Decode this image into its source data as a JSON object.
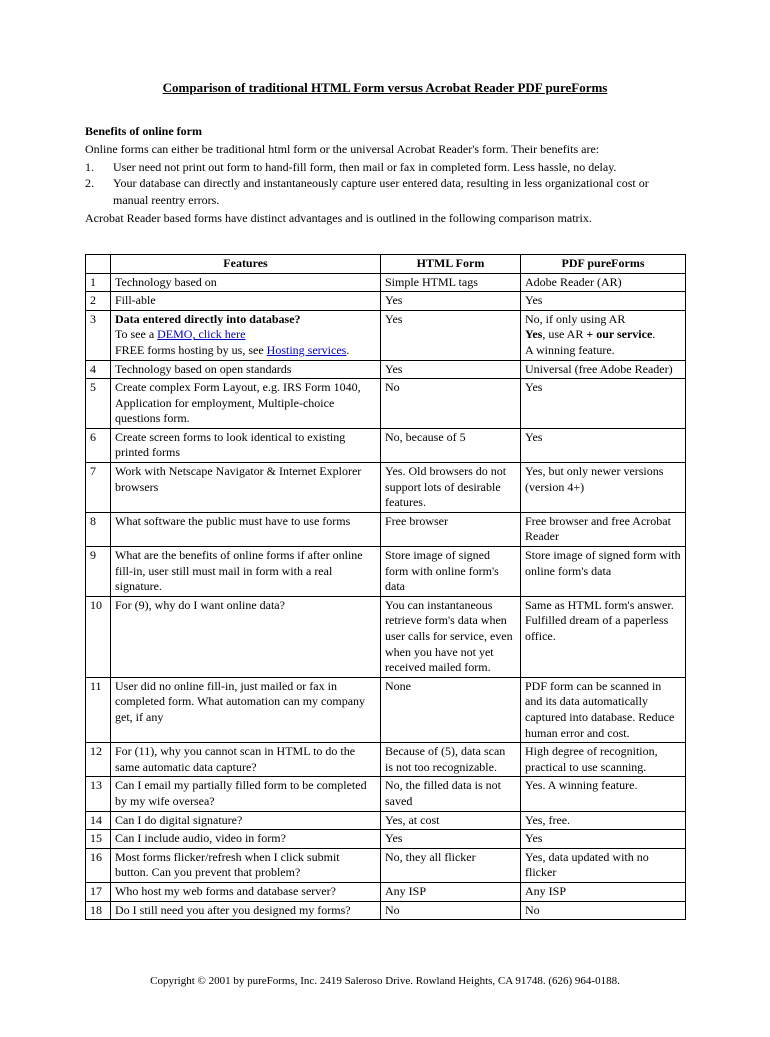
{
  "title": "Comparison of traditional HTML Form versus Acrobat Reader PDF pureForms",
  "benefits_heading": "Benefits of online form",
  "benefits_intro": "Online forms can either be traditional html form or the universal Acrobat Reader's form. Their benefits are:",
  "benefit_items": [
    "User need not print out form to hand-fill form, then mail or fax in completed form. Less hassle, no delay.",
    "Your database can directly and instantaneously capture user entered data, resulting in less organizational cost or manual reentry errors."
  ],
  "matrix_intro": "Acrobat Reader based forms have distinct advantages and is outlined in the following comparison matrix.",
  "columns": [
    "",
    "Features",
    "HTML Form",
    "PDF pureForms"
  ],
  "row3": {
    "feat_bold": "Data entered directly into database?",
    "feat_line2_pre": "To see a ",
    "feat_link1": "DEMO, click here",
    "feat_line3_pre": "FREE forms hosting by us, see ",
    "feat_link2": "Hosting services",
    "feat_line3_post": ".",
    "html": "Yes",
    "pdf_line1": "No, if only using AR",
    "pdf_line2_pre": "Yes",
    "pdf_line2_mid": ", use AR ",
    "pdf_line2_bold": "+ our service",
    "pdf_line2_post": ".",
    "pdf_line3": "A winning feature."
  },
  "rows": [
    {
      "n": "1",
      "feat": "Technology based on",
      "html": "Simple HTML tags",
      "pdf": "Adobe Reader (AR)"
    },
    {
      "n": "2",
      "feat": "Fill-able",
      "html": "Yes",
      "pdf": "Yes"
    },
    {
      "n": "4",
      "feat": "Technology based on open standards",
      "html": "Yes",
      "pdf": "Universal (free Adobe Reader)"
    },
    {
      "n": "5",
      "feat": "Create complex Form Layout, e.g. IRS Form 1040, Application for employment, Multiple-choice questions form.",
      "html": "No",
      "pdf": "Yes"
    },
    {
      "n": "6",
      "feat": "Create screen forms to look identical to existing printed forms",
      "html": "No, because of 5",
      "pdf": "Yes"
    },
    {
      "n": "7",
      "feat": "Work with Netscape Navigator & Internet Explorer browsers",
      "html": "Yes. Old browsers do not support lots of desirable features.",
      "pdf": "Yes, but only newer versions (version 4+)"
    },
    {
      "n": "8",
      "feat": "What software the public must have to use forms",
      "html": "Free browser",
      "pdf": "Free browser and free Acrobat Reader"
    },
    {
      "n": "9",
      "feat": "What are the benefits of online forms if after online fill-in, user still must mail in form with a real signature.",
      "html": "Store image of signed form with online form's data",
      "pdf": "Store image of signed form with online form's data"
    },
    {
      "n": "10",
      "feat": "For (9), why do I want online data?",
      "html": "You can instantaneous retrieve form's data when user calls for service, even when you have not yet received mailed form.",
      "pdf": "Same as HTML form's answer. Fulfilled dream of a paperless office."
    },
    {
      "n": "11",
      "feat": "User did no online fill-in, just mailed or fax in completed form. What automation can my company get, if any",
      "html": "None",
      "pdf": "PDF form can be scanned in and its data automatically captured into database. Reduce human error and cost."
    },
    {
      "n": "12",
      "feat": "For (11), why you cannot scan in HTML to do the same automatic data capture?",
      "html": "Because of (5), data scan is not too recognizable.",
      "pdf": "High degree of recognition, practical to use scanning."
    },
    {
      "n": "13",
      "feat": "Can I email my partially filled form to be completed by my wife oversea?",
      "html": "No, the filled data is not saved",
      "pdf": "Yes. A winning feature."
    },
    {
      "n": "14",
      "feat": "Can I do digital signature?",
      "html": "Yes, at cost",
      "pdf": "Yes, free."
    },
    {
      "n": "15",
      "feat": "Can I include audio, video in form?",
      "html": "Yes",
      "pdf": "Yes"
    },
    {
      "n": "16",
      "feat": "Most forms flicker/refresh when I click submit button. Can you prevent that problem?",
      "html": "No, they all flicker",
      "pdf": "Yes, data updated with no flicker"
    },
    {
      "n": "17",
      "feat": "Who host my web forms and database server?",
      "html": "Any ISP",
      "pdf": "Any ISP"
    },
    {
      "n": "18",
      "feat": "Do I still need you after you designed my forms?",
      "html": "No",
      "pdf": "No"
    }
  ],
  "footer": "Copyright © 2001 by pureForms, Inc. 2419 Saleroso Drive. Rowland Heights, CA 91748.   (626) 964-0188."
}
